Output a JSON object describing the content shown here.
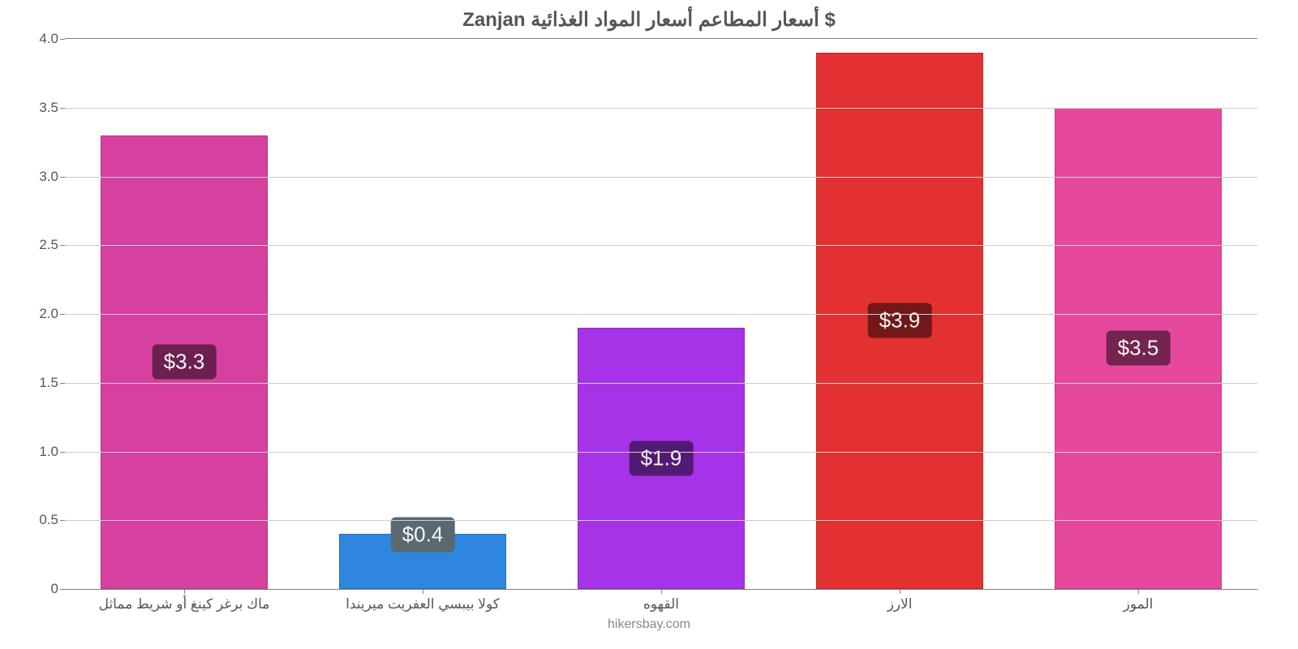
{
  "chart": {
    "type": "bar",
    "title": "$ أسعار المطاعم أسعار المواد الغذائية Zanjan",
    "title_fontsize": 24,
    "title_color": "#555555",
    "background_color": "#ffffff",
    "grid_color": "#cccccc",
    "axis_color": "#808080",
    "footer": "hikersbay.com",
    "footer_color": "#888888",
    "ylim": [
      0,
      4.0
    ],
    "yticks": [
      0,
      0.5,
      1.0,
      1.5,
      2.0,
      2.5,
      3.0,
      3.5,
      4.0
    ],
    "ytick_labels": [
      "0",
      "0.5",
      "1.0",
      "1.5",
      "2.0",
      "2.5",
      "3.0",
      "3.5",
      "4.0"
    ],
    "label_fontsize": 17,
    "label_color": "#555555",
    "value_fontsize": 26,
    "value_color": "#f5f5f5",
    "bar_width_pct": 70,
    "bars": [
      {
        "category": "ماك برغر كينغ أو شريط مماثل",
        "value": 3.3,
        "display": "$3.3",
        "color": "#d6409f",
        "badge_bg": "#6b2050"
      },
      {
        "category": "كولا بيبسي العفريت ميريندا",
        "value": 0.4,
        "display": "$0.4",
        "color": "#2e86de",
        "badge_bg": "#5a6872"
      },
      {
        "category": "القهوه",
        "value": 1.9,
        "display": "$1.9",
        "color": "#a633e8",
        "badge_bg": "#531a74"
      },
      {
        "category": "الارز",
        "value": 3.9,
        "display": "$3.9",
        "color": "#e33030",
        "badge_bg": "#721818"
      },
      {
        "category": "الموز",
        "value": 3.5,
        "display": "$3.5",
        "color": "#e6489e",
        "badge_bg": "#73244f"
      }
    ]
  }
}
